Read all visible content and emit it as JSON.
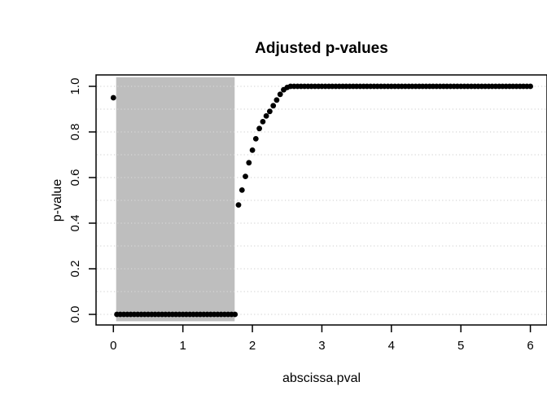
{
  "chart_data": {
    "type": "scatter",
    "title": "Adjusted p-values",
    "xlabel": "abscissa.pval",
    "ylabel": "p-value",
    "xlim": [
      0,
      6
    ],
    "ylim": [
      0,
      1
    ],
    "background_color": "#ffffff",
    "x_ticks": {
      "values": [
        0,
        1,
        2,
        3,
        4,
        5,
        6
      ],
      "labels": [
        "0",
        "1",
        "2",
        "3",
        "4",
        "5",
        "6"
      ]
    },
    "y_ticks": {
      "values": [
        0,
        0.2,
        0.4,
        0.6,
        0.8,
        1.0
      ],
      "labels": [
        "0.0",
        "0.2",
        "0.4",
        "0.6",
        "0.8",
        "1.0"
      ]
    },
    "grid": {
      "orientation": "horizontal",
      "values": [
        0,
        0.1,
        0.2,
        0.3,
        0.4,
        0.5,
        0.6,
        0.7,
        0.8,
        0.9,
        1.0
      ],
      "style": "dotted",
      "color": "#d6d6d6"
    },
    "shaded_region": {
      "x_from": 0.04,
      "x_to": 1.745,
      "y_from": -0.03,
      "y_to": 1.04,
      "color": "#bebebe"
    },
    "marker": {
      "shape": "filled-circle",
      "color": "#000000",
      "radius_px": 3.4
    },
    "series_summary": {
      "isolated_point": [
        0,
        0.95
      ],
      "zero_run": {
        "x_from": 0.05,
        "x_to": 1.75,
        "step": 0.05,
        "y": 0
      },
      "rising_run": {
        "x_from": 1.8,
        "x_to": 2.5,
        "step": 0.05
      },
      "one_run": {
        "x_from": 2.55,
        "x_to": 6.0,
        "step": 0.05,
        "y": 1
      }
    },
    "points": [
      [
        0,
        0.95
      ],
      [
        0.05,
        0
      ],
      [
        0.1,
        0
      ],
      [
        0.15,
        0
      ],
      [
        0.2,
        0
      ],
      [
        0.25,
        0
      ],
      [
        0.3,
        0
      ],
      [
        0.35,
        0
      ],
      [
        0.4,
        0
      ],
      [
        0.45,
        0
      ],
      [
        0.5,
        0
      ],
      [
        0.55,
        0
      ],
      [
        0.6,
        0
      ],
      [
        0.65,
        0
      ],
      [
        0.7,
        0
      ],
      [
        0.75,
        0
      ],
      [
        0.8,
        0
      ],
      [
        0.85,
        0
      ],
      [
        0.9,
        0
      ],
      [
        0.95,
        0
      ],
      [
        1,
        0
      ],
      [
        1.05,
        0
      ],
      [
        1.1,
        0
      ],
      [
        1.15,
        0
      ],
      [
        1.2,
        0
      ],
      [
        1.25,
        0
      ],
      [
        1.3,
        0
      ],
      [
        1.35,
        0
      ],
      [
        1.4,
        0
      ],
      [
        1.45,
        0
      ],
      [
        1.5,
        0
      ],
      [
        1.55,
        0
      ],
      [
        1.6,
        0
      ],
      [
        1.65,
        0
      ],
      [
        1.7,
        0
      ],
      [
        1.75,
        0
      ],
      [
        1.8,
        0.48
      ],
      [
        1.85,
        0.545
      ],
      [
        1.9,
        0.605
      ],
      [
        1.95,
        0.665
      ],
      [
        2,
        0.72
      ],
      [
        2.05,
        0.77
      ],
      [
        2.1,
        0.815
      ],
      [
        2.15,
        0.845
      ],
      [
        2.2,
        0.87
      ],
      [
        2.25,
        0.89
      ],
      [
        2.3,
        0.915
      ],
      [
        2.35,
        0.94
      ],
      [
        2.4,
        0.965
      ],
      [
        2.45,
        0.985
      ],
      [
        2.5,
        0.995
      ],
      [
        2.55,
        1
      ],
      [
        2.6,
        1
      ],
      [
        2.65,
        1
      ],
      [
        2.7,
        1
      ],
      [
        2.75,
        1
      ],
      [
        2.8,
        1
      ],
      [
        2.85,
        1
      ],
      [
        2.9,
        1
      ],
      [
        2.95,
        1
      ],
      [
        3,
        1
      ],
      [
        3.05,
        1
      ],
      [
        3.1,
        1
      ],
      [
        3.15,
        1
      ],
      [
        3.2,
        1
      ],
      [
        3.25,
        1
      ],
      [
        3.3,
        1
      ],
      [
        3.35,
        1
      ],
      [
        3.4,
        1
      ],
      [
        3.45,
        1
      ],
      [
        3.5,
        1
      ],
      [
        3.55,
        1
      ],
      [
        3.6,
        1
      ],
      [
        3.65,
        1
      ],
      [
        3.7,
        1
      ],
      [
        3.75,
        1
      ],
      [
        3.8,
        1
      ],
      [
        3.85,
        1
      ],
      [
        3.9,
        1
      ],
      [
        3.95,
        1
      ],
      [
        4,
        1
      ],
      [
        4.05,
        1
      ],
      [
        4.1,
        1
      ],
      [
        4.15,
        1
      ],
      [
        4.2,
        1
      ],
      [
        4.25,
        1
      ],
      [
        4.3,
        1
      ],
      [
        4.35,
        1
      ],
      [
        4.4,
        1
      ],
      [
        4.45,
        1
      ],
      [
        4.5,
        1
      ],
      [
        4.55,
        1
      ],
      [
        4.6,
        1
      ],
      [
        4.65,
        1
      ],
      [
        4.7,
        1
      ],
      [
        4.75,
        1
      ],
      [
        4.8,
        1
      ],
      [
        4.85,
        1
      ],
      [
        4.9,
        1
      ],
      [
        4.95,
        1
      ],
      [
        5,
        1
      ],
      [
        5.05,
        1
      ],
      [
        5.1,
        1
      ],
      [
        5.15,
        1
      ],
      [
        5.2,
        1
      ],
      [
        5.25,
        1
      ],
      [
        5.3,
        1
      ],
      [
        5.35,
        1
      ],
      [
        5.4,
        1
      ],
      [
        5.45,
        1
      ],
      [
        5.5,
        1
      ],
      [
        5.55,
        1
      ],
      [
        5.6,
        1
      ],
      [
        5.65,
        1
      ],
      [
        5.7,
        1
      ],
      [
        5.75,
        1
      ],
      [
        5.8,
        1
      ],
      [
        5.85,
        1
      ],
      [
        5.9,
        1
      ],
      [
        5.95,
        1
      ],
      [
        6,
        1
      ]
    ]
  }
}
